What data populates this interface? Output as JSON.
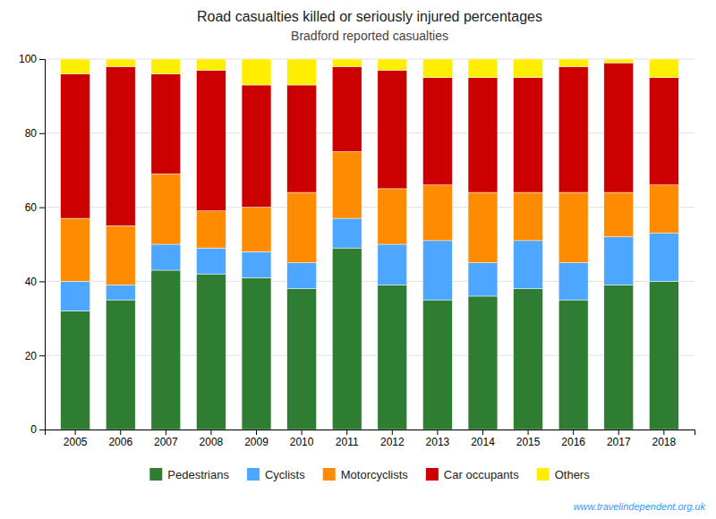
{
  "chart_data": {
    "type": "bar",
    "stacked": true,
    "title": "Road casualties killed or seriously injured percentages",
    "subtitle": "Bradford reported casualties",
    "categories": [
      "2005",
      "2006",
      "2007",
      "2008",
      "2009",
      "2010",
      "2011",
      "2012",
      "2013",
      "2014",
      "2015",
      "2016",
      "2017",
      "2018"
    ],
    "series": [
      {
        "name": "Pedestrians",
        "color": "#2e7d32",
        "values": [
          32,
          35,
          43,
          42,
          41,
          38,
          49,
          39,
          35,
          36,
          38,
          35,
          39,
          40
        ]
      },
      {
        "name": "Cyclists",
        "color": "#4da6ff",
        "values": [
          8,
          4,
          7,
          7,
          7,
          7,
          8,
          11,
          16,
          9,
          13,
          10,
          13,
          13
        ]
      },
      {
        "name": "Motorcyclists",
        "color": "#ff8c00",
        "values": [
          17,
          16,
          19,
          10,
          12,
          19,
          18,
          15,
          15,
          19,
          13,
          19,
          12,
          13
        ]
      },
      {
        "name": "Car occupants",
        "color": "#cc0000",
        "values": [
          39,
          43,
          27,
          38,
          33,
          29,
          23,
          32,
          29,
          31,
          31,
          34,
          35,
          29
        ]
      },
      {
        "name": "Others",
        "color": "#ffee00",
        "values": [
          4,
          2,
          4,
          3,
          7,
          7,
          2,
          3,
          5,
          5,
          5,
          2,
          1,
          5
        ]
      }
    ],
    "ylim": [
      0,
      100
    ],
    "yticks": [
      0,
      20,
      40,
      60,
      80,
      100
    ],
    "grid": true,
    "legend": "bottom",
    "annotations": [
      "www.travelindependent.org.uk"
    ]
  }
}
